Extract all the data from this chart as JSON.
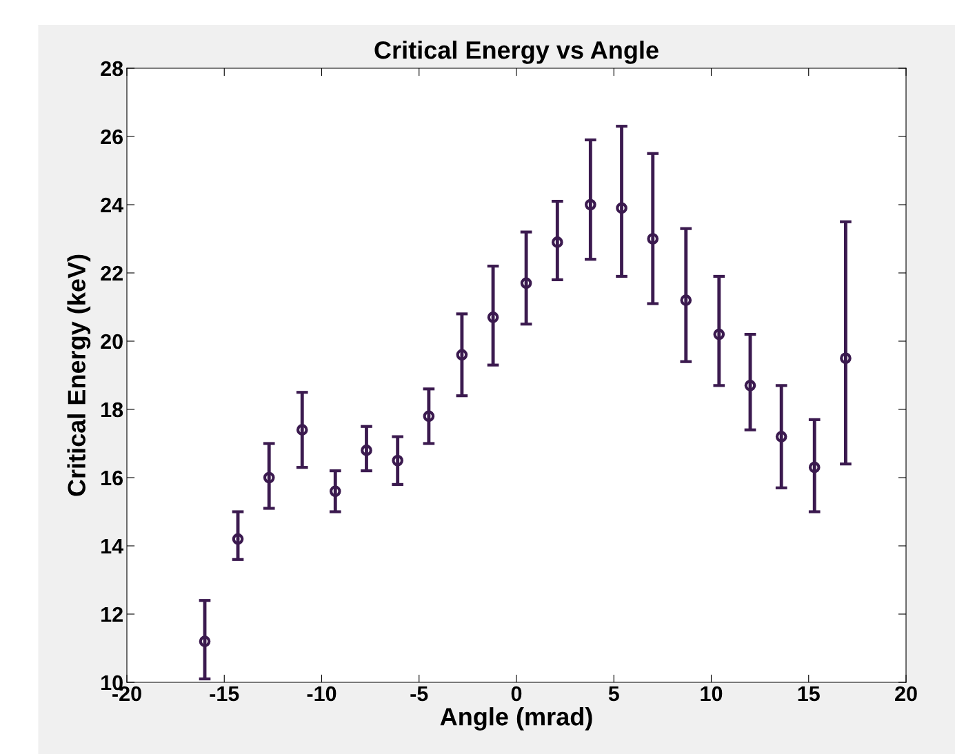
{
  "chart_data": {
    "type": "scatter",
    "title": "Critical Energy vs Angle",
    "xlabel": "Angle (mrad)",
    "ylabel": "Critical Energy (keV)",
    "x": [
      -16.0,
      -14.3,
      -12.7,
      -11.0,
      -9.3,
      -7.7,
      -6.1,
      -4.5,
      -2.8,
      -1.2,
      0.5,
      2.1,
      3.8,
      5.4,
      7.0,
      8.7,
      10.4,
      12.0,
      13.6,
      15.3,
      16.9
    ],
    "series": [
      {
        "color": "#3b1a4f",
        "values": [
          11.2,
          14.2,
          16.0,
          17.4,
          15.6,
          16.8,
          16.5,
          17.8,
          19.6,
          20.7,
          21.7,
          22.9,
          24.0,
          23.9,
          23.0,
          21.2,
          20.2,
          18.7,
          17.2,
          16.3,
          19.5
        ],
        "errors": [
          [
            10.1,
            12.4
          ],
          [
            13.6,
            15.0
          ],
          [
            15.1,
            17.0
          ],
          [
            16.3,
            18.5
          ],
          [
            15.0,
            16.2
          ],
          [
            16.2,
            17.5
          ],
          [
            15.8,
            17.2
          ],
          [
            17.0,
            18.6
          ],
          [
            18.4,
            20.8
          ],
          [
            19.3,
            22.2
          ],
          [
            20.5,
            23.2
          ],
          [
            21.8,
            24.1
          ],
          [
            22.4,
            25.9
          ],
          [
            21.9,
            26.3
          ],
          [
            21.1,
            25.5
          ],
          [
            19.4,
            23.3
          ],
          [
            18.7,
            21.9
          ],
          [
            17.4,
            20.2
          ],
          [
            15.7,
            18.7
          ],
          [
            15.0,
            17.7
          ],
          [
            16.4,
            23.5
          ]
        ]
      }
    ],
    "xlim": [
      -20,
      20
    ],
    "ylim": [
      10,
      28
    ],
    "xticks": [
      -20,
      -15,
      -10,
      -5,
      0,
      5,
      10,
      15,
      20
    ],
    "yticks": [
      10,
      12,
      14,
      16,
      18,
      20,
      22,
      24,
      26,
      28
    ],
    "marker": "circle",
    "grid": false,
    "legend": false
  }
}
